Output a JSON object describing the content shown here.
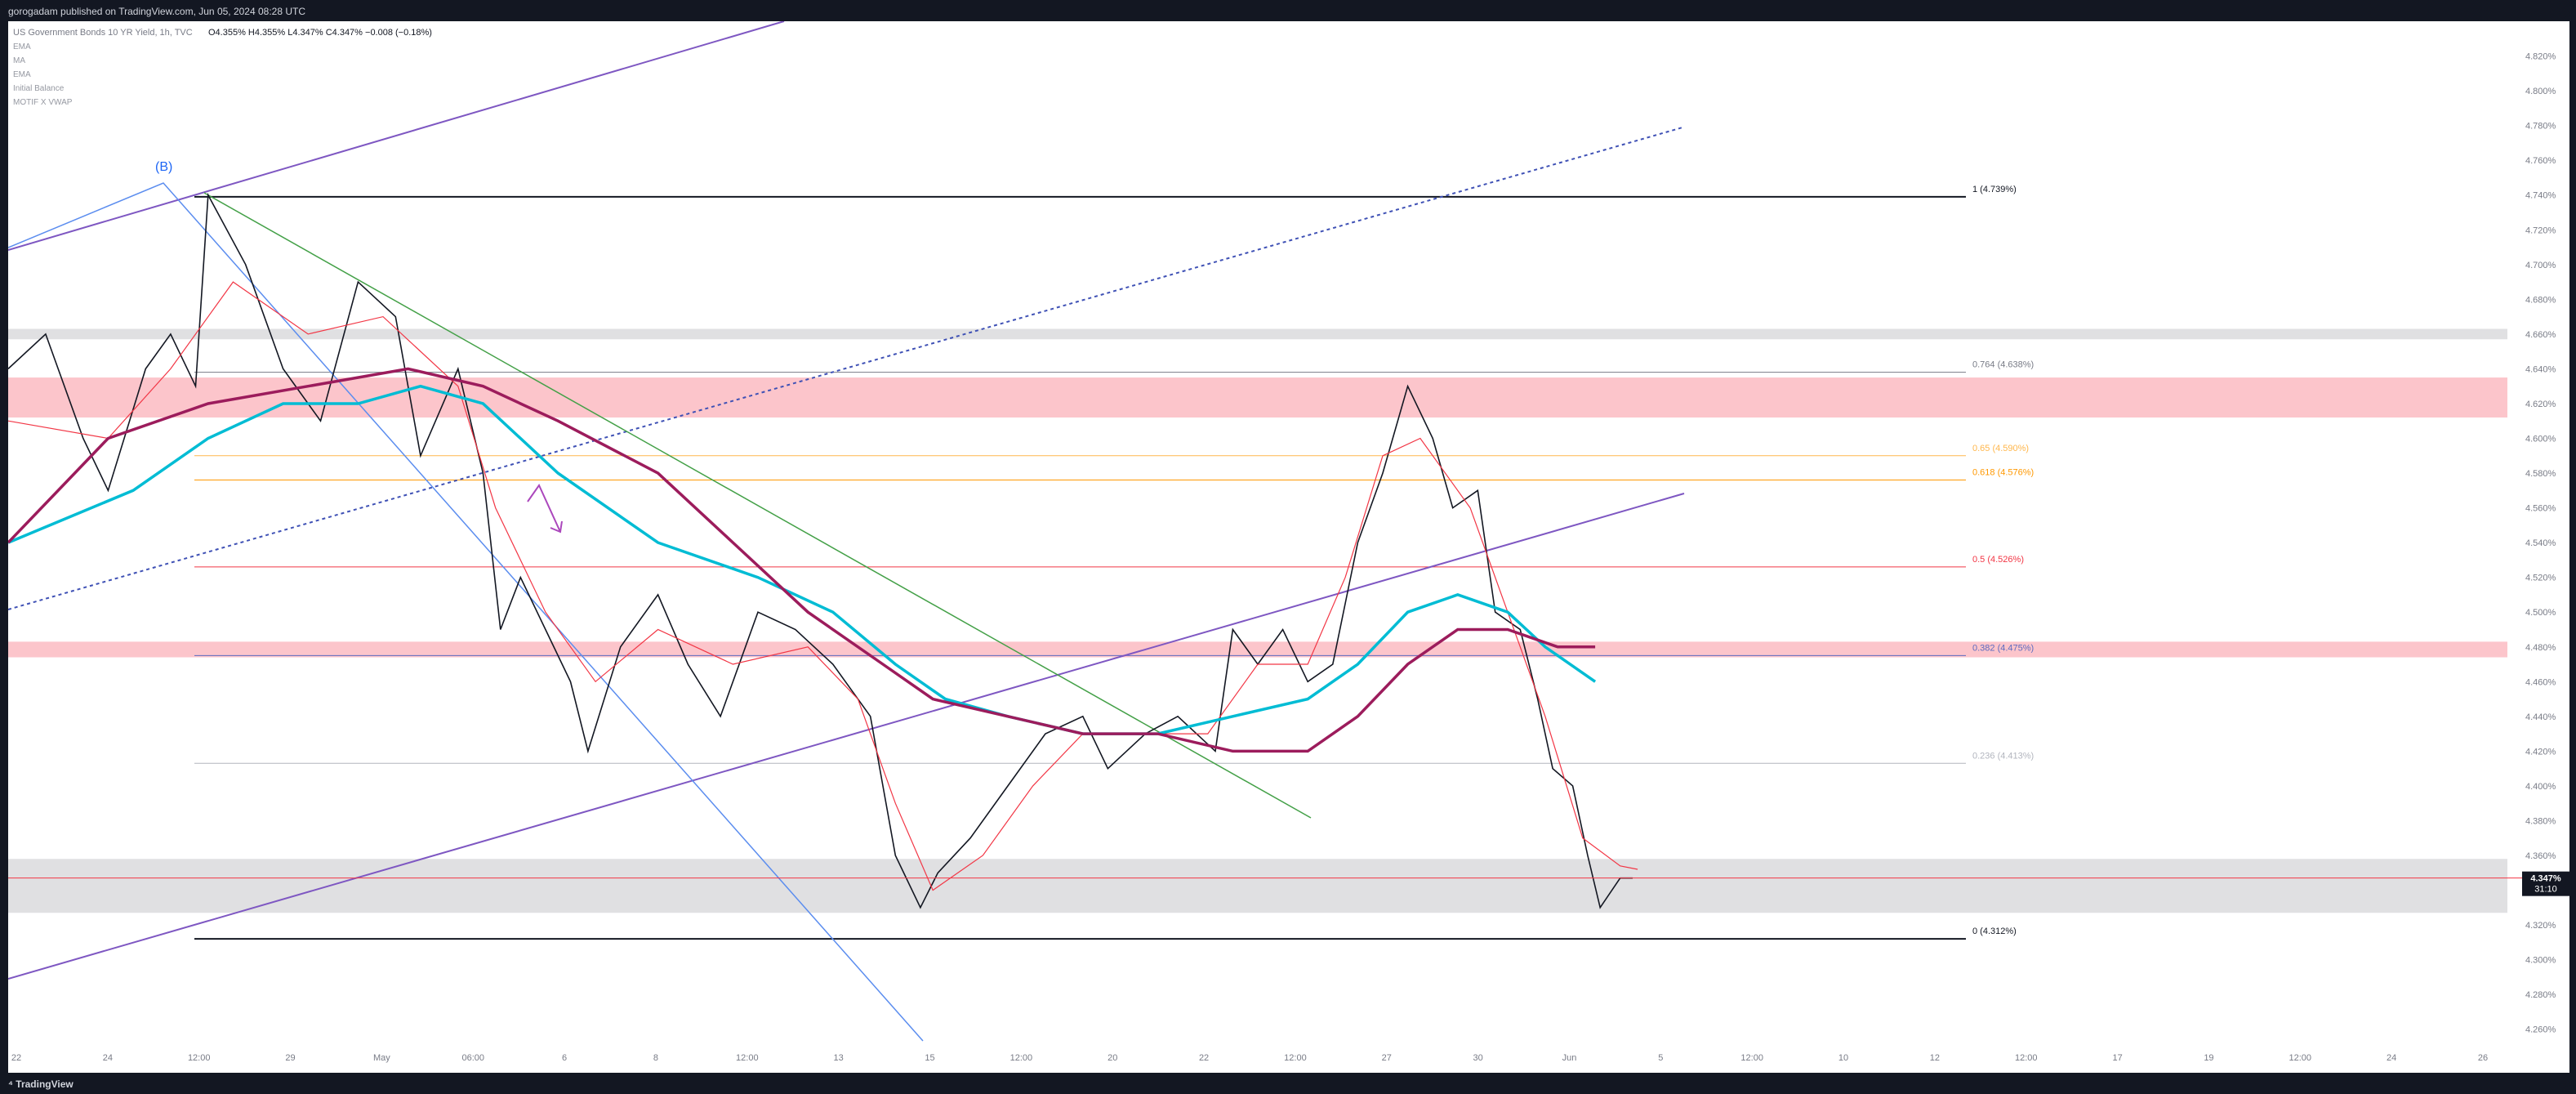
{
  "header": {
    "publisher": "gorogadam published on TradingView.com, Jun 05, 2024 08:28 UTC"
  },
  "legend": {
    "symbol": "US Government Bonds 10 YR Yield, 1h, TVC",
    "ohlc": "O4.355% H4.355% L4.347% C4.347% −0.008 (−0.18%)",
    "indicators": [
      "EMA",
      "MA",
      "EMA",
      "Initial Balance",
      "MOTIF X VWAP"
    ]
  },
  "footer": {
    "brand": "TradingView"
  },
  "colors": {
    "candle": "#131722",
    "ema_fast": "#f23645",
    "ema_mid": "#00bcd4",
    "ma_slow": "#9c1c5c",
    "channel": "#7e57c2",
    "wave_line": "#5b8def",
    "downtrend": "#43a047",
    "zone_red": "#fcc5cb",
    "zone_grey": "#e0e0e2"
  },
  "annotations": {
    "wave_label": "(B)"
  },
  "chart_data": {
    "type": "line",
    "title": "US Government Bonds 10 YR Yield, 1h, TVC",
    "ylim": [
      4.25,
      4.84
    ],
    "x_tick_labels": [
      "22",
      "24",
      "12:00",
      "29",
      "May",
      "06:00",
      "6",
      "8",
      "12:00",
      "13",
      "15",
      "12:00",
      "20",
      "22",
      "12:00",
      "27",
      "30",
      "Jun",
      "5",
      "12:00",
      "10",
      "12",
      "12:00",
      "17",
      "19",
      "12:00",
      "24",
      "26"
    ],
    "y_ticks": [
      "4.820%",
      "4.800%",
      "4.780%",
      "4.760%",
      "4.740%",
      "4.720%",
      "4.700%",
      "4.680%",
      "4.660%",
      "4.640%",
      "4.620%",
      "4.600%",
      "4.580%",
      "4.560%",
      "4.540%",
      "4.520%",
      "4.500%",
      "4.480%",
      "4.460%",
      "4.440%",
      "4.420%",
      "4.400%",
      "4.380%",
      "4.360%",
      "4.340%",
      "4.320%",
      "4.300%",
      "4.280%",
      "4.260%"
    ],
    "last_price": {
      "value": 4.347,
      "label": "4.347%",
      "countdown": "31:10"
    },
    "fib_levels": [
      {
        "level": 4.739,
        "label": "1 (4.739%)",
        "color": "#131722"
      },
      {
        "level": 4.638,
        "label": "0.764 (4.638%)",
        "color": "#787b86"
      },
      {
        "level": 4.59,
        "label": "0.65 (4.590%)",
        "color": "#ffb74d"
      },
      {
        "level": 4.576,
        "label": "0.618 (4.576%)",
        "color": "#ff9800"
      },
      {
        "level": 4.526,
        "label": "0.5 (4.526%)",
        "color": "#f23645"
      },
      {
        "level": 4.475,
        "label": "0.382 (4.475%)",
        "color": "#5c6bc0"
      },
      {
        "level": 4.413,
        "label": "0.236 (4.413%)",
        "color": "#b2b5be"
      },
      {
        "level": 4.312,
        "label": "0 (4.312%)",
        "color": "#131722"
      }
    ],
    "zones": [
      {
        "from": 4.612,
        "to": 4.635,
        "color": "#fcc5cb"
      },
      {
        "from": 4.474,
        "to": 4.483,
        "color": "#fcc5cb"
      },
      {
        "from": 4.657,
        "to": 4.663,
        "color": "#e0e0e2"
      },
      {
        "from": 4.327,
        "to": 4.358,
        "color": "#e0e0e2"
      }
    ],
    "price_path": [
      [
        0,
        4.64
      ],
      [
        0.015,
        4.66
      ],
      [
        0.03,
        4.6
      ],
      [
        0.04,
        4.57
      ],
      [
        0.055,
        4.64
      ],
      [
        0.065,
        4.66
      ],
      [
        0.075,
        4.63
      ],
      [
        0.08,
        4.74
      ],
      [
        0.095,
        4.7
      ],
      [
        0.11,
        4.64
      ],
      [
        0.125,
        4.61
      ],
      [
        0.14,
        4.69
      ],
      [
        0.155,
        4.67
      ],
      [
        0.165,
        4.59
      ],
      [
        0.18,
        4.64
      ],
      [
        0.19,
        4.58
      ],
      [
        0.197,
        4.49
      ],
      [
        0.205,
        4.52
      ],
      [
        0.215,
        4.49
      ],
      [
        0.225,
        4.46
      ],
      [
        0.232,
        4.42
      ],
      [
        0.245,
        4.48
      ],
      [
        0.26,
        4.51
      ],
      [
        0.272,
        4.47
      ],
      [
        0.285,
        4.44
      ],
      [
        0.3,
        4.5
      ],
      [
        0.315,
        4.49
      ],
      [
        0.33,
        4.47
      ],
      [
        0.345,
        4.44
      ],
      [
        0.355,
        4.36
      ],
      [
        0.365,
        4.33
      ],
      [
        0.372,
        4.35
      ],
      [
        0.385,
        4.37
      ],
      [
        0.4,
        4.4
      ],
      [
        0.415,
        4.43
      ],
      [
        0.43,
        4.44
      ],
      [
        0.44,
        4.41
      ],
      [
        0.455,
        4.43
      ],
      [
        0.468,
        4.44
      ],
      [
        0.483,
        4.42
      ],
      [
        0.49,
        4.49
      ],
      [
        0.5,
        4.47
      ],
      [
        0.51,
        4.49
      ],
      [
        0.52,
        4.46
      ],
      [
        0.53,
        4.47
      ],
      [
        0.54,
        4.54
      ],
      [
        0.55,
        4.58
      ],
      [
        0.56,
        4.63
      ],
      [
        0.57,
        4.6
      ],
      [
        0.578,
        4.56
      ],
      [
        0.588,
        4.57
      ],
      [
        0.595,
        4.5
      ],
      [
        0.605,
        4.49
      ],
      [
        0.612,
        4.45
      ],
      [
        0.618,
        4.41
      ],
      [
        0.626,
        4.4
      ],
      [
        0.632,
        4.36
      ],
      [
        0.637,
        4.33
      ],
      [
        0.645,
        4.347
      ],
      [
        0.65,
        4.347
      ]
    ],
    "ema_fast": [
      [
        0,
        4.61
      ],
      [
        0.04,
        4.6
      ],
      [
        0.065,
        4.64
      ],
      [
        0.09,
        4.69
      ],
      [
        0.12,
        4.66
      ],
      [
        0.15,
        4.67
      ],
      [
        0.18,
        4.63
      ],
      [
        0.195,
        4.56
      ],
      [
        0.215,
        4.5
      ],
      [
        0.235,
        4.46
      ],
      [
        0.26,
        4.49
      ],
      [
        0.29,
        4.47
      ],
      [
        0.32,
        4.48
      ],
      [
        0.34,
        4.45
      ],
      [
        0.355,
        4.39
      ],
      [
        0.37,
        4.34
      ],
      [
        0.39,
        4.36
      ],
      [
        0.41,
        4.4
      ],
      [
        0.43,
        4.43
      ],
      [
        0.46,
        4.43
      ],
      [
        0.48,
        4.43
      ],
      [
        0.5,
        4.47
      ],
      [
        0.52,
        4.47
      ],
      [
        0.535,
        4.52
      ],
      [
        0.55,
        4.59
      ],
      [
        0.565,
        4.6
      ],
      [
        0.585,
        4.56
      ],
      [
        0.6,
        4.5
      ],
      [
        0.615,
        4.44
      ],
      [
        0.63,
        4.37
      ],
      [
        0.645,
        4.354
      ],
      [
        0.652,
        4.352
      ]
    ],
    "ema_mid": [
      [
        0,
        4.54
      ],
      [
        0.05,
        4.57
      ],
      [
        0.08,
        4.6
      ],
      [
        0.11,
        4.62
      ],
      [
        0.14,
        4.62
      ],
      [
        0.165,
        4.63
      ],
      [
        0.19,
        4.62
      ],
      [
        0.22,
        4.58
      ],
      [
        0.26,
        4.54
      ],
      [
        0.3,
        4.52
      ],
      [
        0.33,
        4.5
      ],
      [
        0.355,
        4.47
      ],
      [
        0.375,
        4.45
      ],
      [
        0.4,
        4.44
      ],
      [
        0.43,
        4.43
      ],
      [
        0.46,
        4.43
      ],
      [
        0.49,
        4.44
      ],
      [
        0.52,
        4.45
      ],
      [
        0.54,
        4.47
      ],
      [
        0.56,
        4.5
      ],
      [
        0.58,
        4.51
      ],
      [
        0.6,
        4.5
      ],
      [
        0.615,
        4.48
      ],
      [
        0.635,
        4.46
      ]
    ],
    "ma_slow": [
      [
        0,
        4.54
      ],
      [
        0.04,
        4.6
      ],
      [
        0.08,
        4.62
      ],
      [
        0.12,
        4.63
      ],
      [
        0.16,
        4.64
      ],
      [
        0.19,
        4.63
      ],
      [
        0.22,
        4.61
      ],
      [
        0.26,
        4.58
      ],
      [
        0.29,
        4.54
      ],
      [
        0.32,
        4.5
      ],
      [
        0.35,
        4.47
      ],
      [
        0.37,
        4.45
      ],
      [
        0.4,
        4.44
      ],
      [
        0.43,
        4.43
      ],
      [
        0.46,
        4.43
      ],
      [
        0.49,
        4.42
      ],
      [
        0.52,
        4.42
      ],
      [
        0.54,
        4.44
      ],
      [
        0.56,
        4.47
      ],
      [
        0.58,
        4.49
      ],
      [
        0.6,
        4.49
      ],
      [
        0.62,
        4.48
      ],
      [
        0.635,
        4.48
      ]
    ]
  }
}
